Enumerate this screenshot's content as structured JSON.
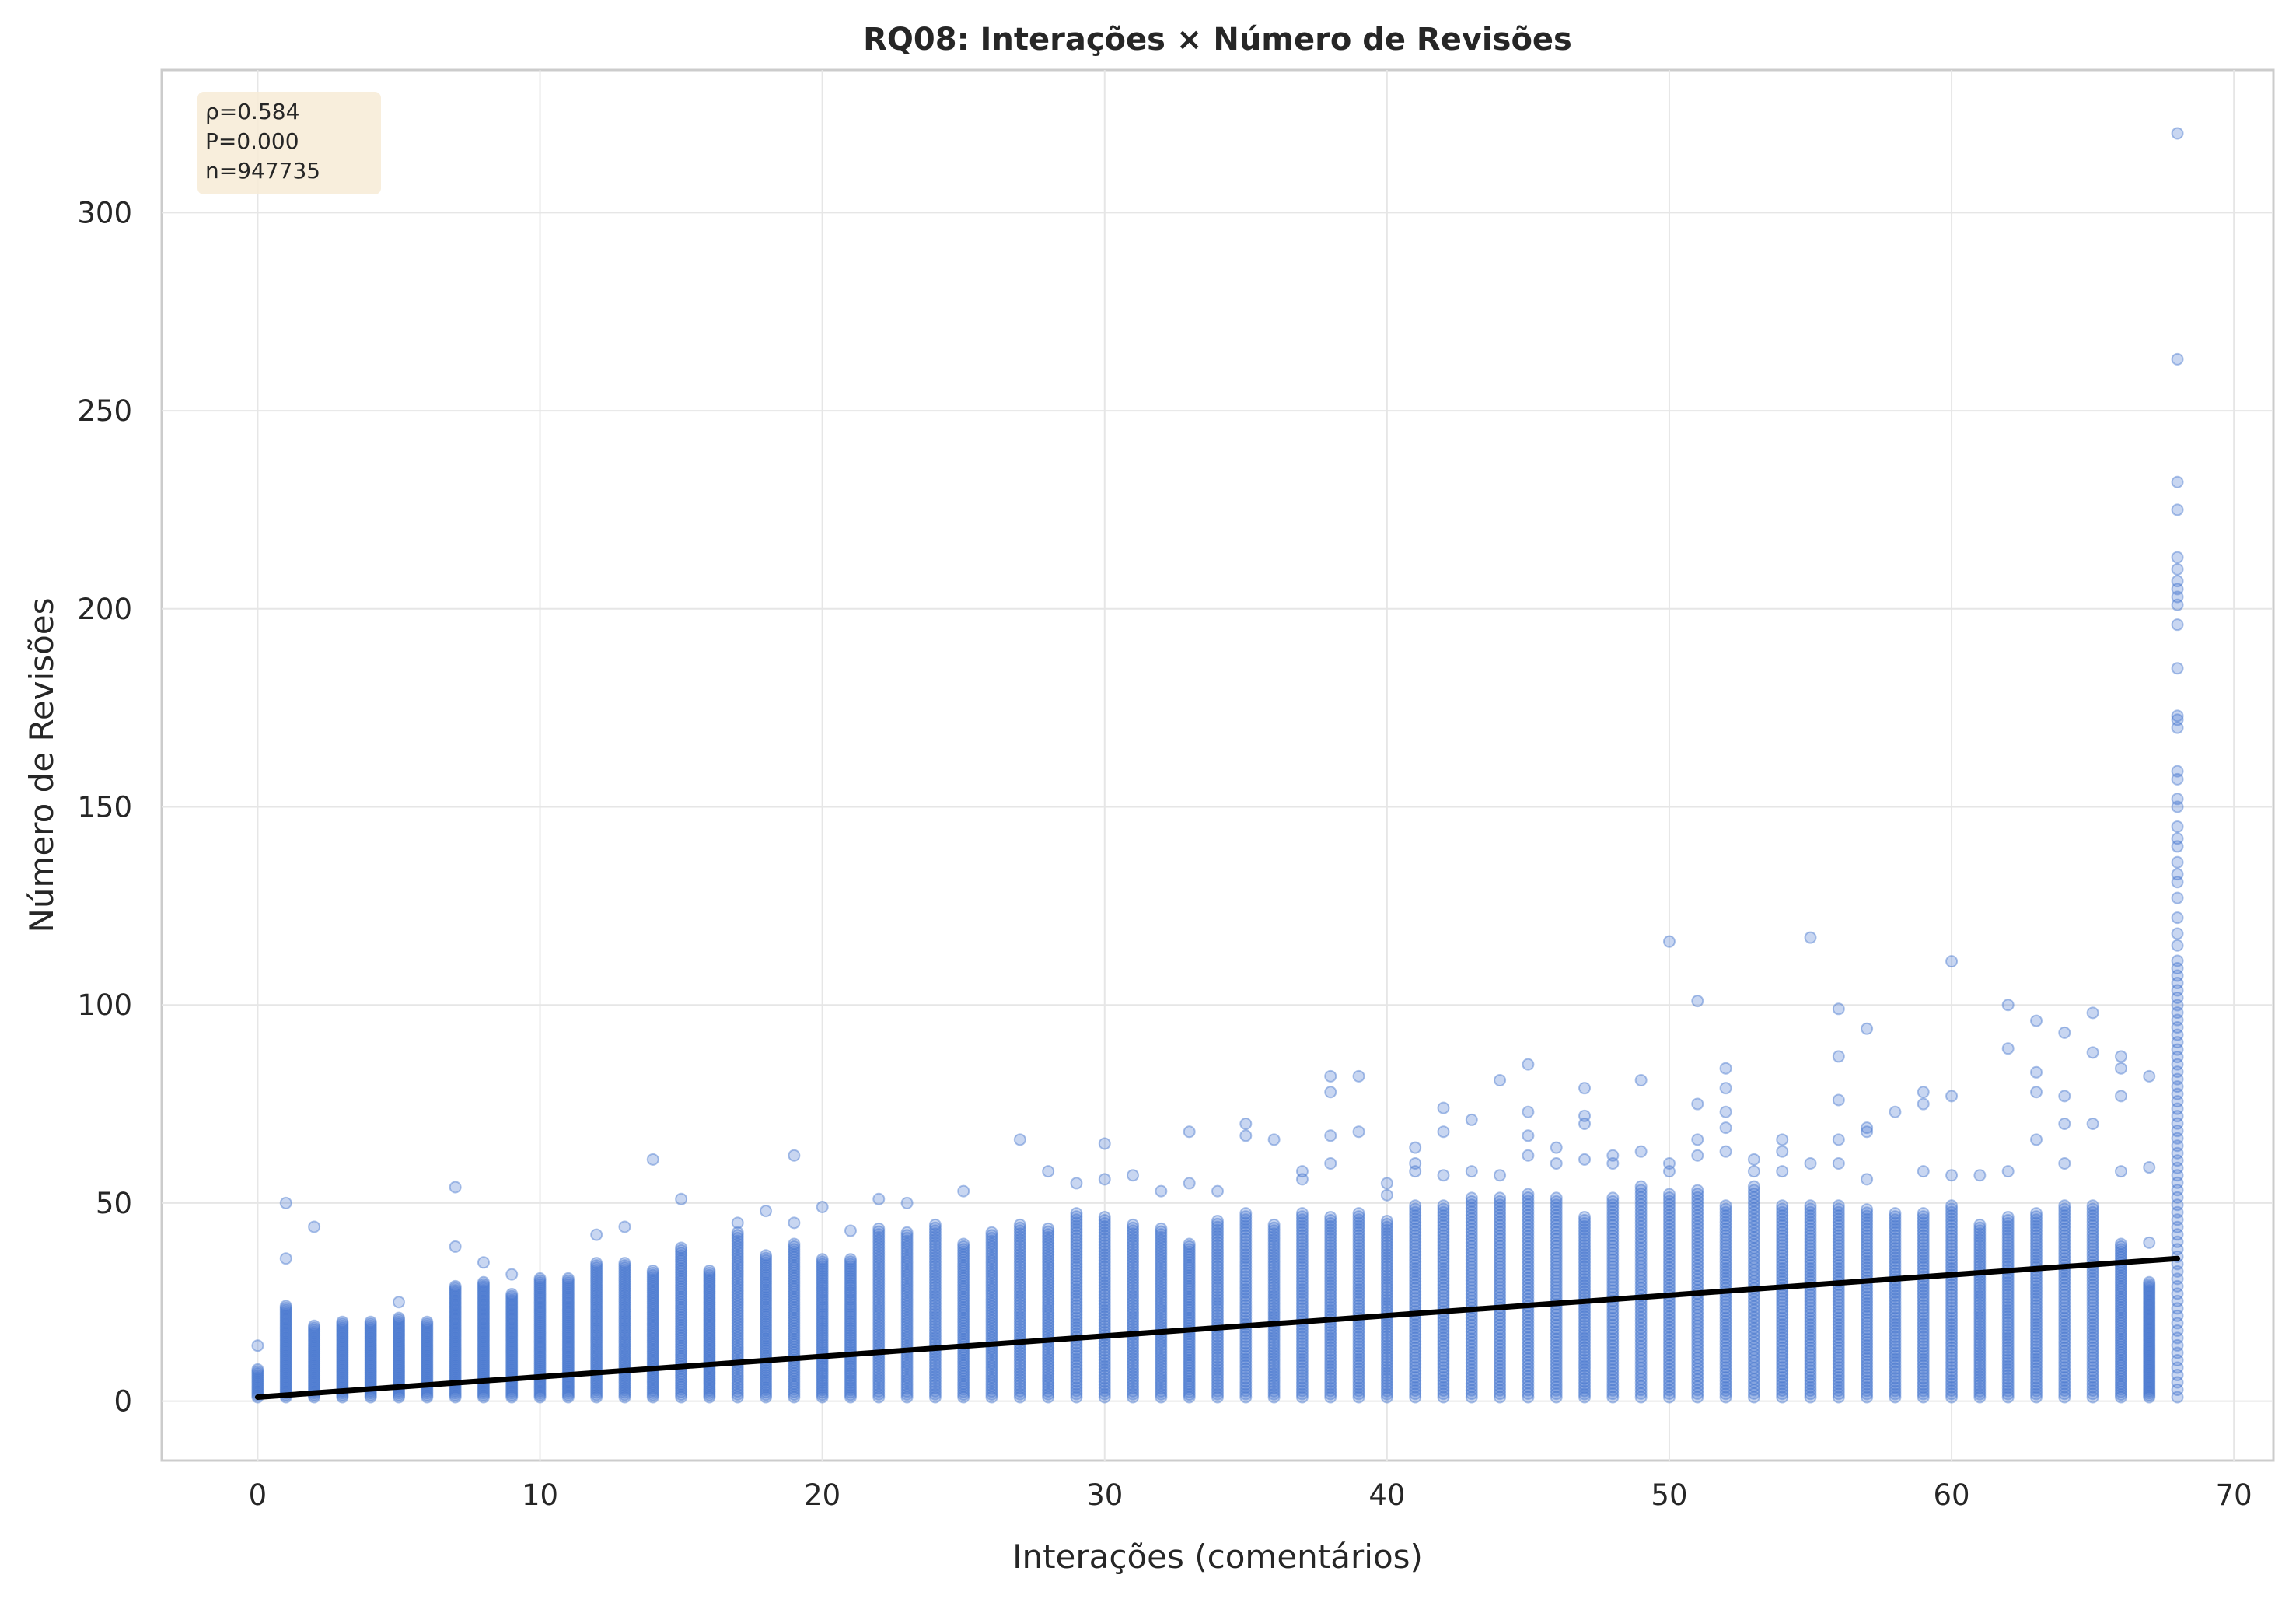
{
  "chart_data": {
    "type": "scatter",
    "title": "RQ08: Interações × Número de Revisões",
    "xlabel": "Interações (comentários)",
    "ylabel": "Número de Revisões",
    "xlim": [
      -3.4,
      71.4
    ],
    "ylim": [
      -15,
      336
    ],
    "xticks": [
      0,
      10,
      20,
      30,
      40,
      50,
      60,
      70
    ],
    "yticks": [
      0,
      50,
      100,
      150,
      200,
      250,
      300
    ],
    "grid": true,
    "point_color": "#4878cf",
    "trend_color": "#000000",
    "trend_line": {
      "x": [
        0,
        68
      ],
      "y": [
        1,
        36
      ]
    },
    "stats_box": {
      "lines": [
        "ρ=0.584",
        "P=0.000",
        "n=947735 "
      ],
      "placement": "top-left",
      "background": "#f7ebd6"
    },
    "dense_max": [
      [
        0,
        8
      ],
      [
        1,
        24
      ],
      [
        2,
        19
      ],
      [
        3,
        20
      ],
      [
        4,
        20
      ],
      [
        5,
        21
      ],
      [
        6,
        20
      ],
      [
        7,
        29
      ],
      [
        8,
        30
      ],
      [
        9,
        27
      ],
      [
        10,
        31
      ],
      [
        11,
        31
      ],
      [
        12,
        35
      ],
      [
        13,
        35
      ],
      [
        14,
        33
      ],
      [
        15,
        39
      ],
      [
        16,
        33
      ],
      [
        17,
        43
      ],
      [
        18,
        37
      ],
      [
        19,
        40
      ],
      [
        20,
        36
      ],
      [
        21,
        36
      ],
      [
        22,
        44
      ],
      [
        23,
        43
      ],
      [
        24,
        45
      ],
      [
        25,
        40
      ],
      [
        26,
        43
      ],
      [
        27,
        45
      ],
      [
        28,
        44
      ],
      [
        29,
        48
      ],
      [
        30,
        47
      ],
      [
        31,
        45
      ],
      [
        32,
        44
      ],
      [
        33,
        40
      ],
      [
        34,
        46
      ],
      [
        35,
        48
      ],
      [
        36,
        45
      ],
      [
        37,
        48
      ],
      [
        38,
        47
      ],
      [
        39,
        48
      ],
      [
        40,
        46
      ],
      [
        41,
        50
      ],
      [
        42,
        50
      ],
      [
        43,
        52
      ],
      [
        44,
        52
      ],
      [
        45,
        53
      ],
      [
        46,
        52
      ],
      [
        47,
        47
      ],
      [
        48,
        52
      ],
      [
        49,
        55
      ],
      [
        50,
        53
      ],
      [
        51,
        54
      ],
      [
        52,
        50
      ],
      [
        53,
        55
      ],
      [
        54,
        50
      ],
      [
        55,
        50
      ],
      [
        56,
        50
      ],
      [
        57,
        49
      ],
      [
        58,
        48
      ],
      [
        59,
        48
      ],
      [
        60,
        50
      ],
      [
        61,
        45
      ],
      [
        62,
        47
      ],
      [
        63,
        48
      ],
      [
        64,
        50
      ],
      [
        65,
        50
      ],
      [
        66,
        40
      ],
      [
        67,
        30
      ],
      [
        68,
        112
      ]
    ],
    "outliers": [
      [
        0,
        14
      ],
      [
        1,
        36
      ],
      [
        1,
        50
      ],
      [
        2,
        44
      ],
      [
        5,
        25
      ],
      [
        7,
        39
      ],
      [
        7,
        54
      ],
      [
        8,
        35
      ],
      [
        9,
        32
      ],
      [
        12,
        42
      ],
      [
        13,
        44
      ],
      [
        14,
        61
      ],
      [
        15,
        51
      ],
      [
        17,
        45
      ],
      [
        18,
        48
      ],
      [
        19,
        62
      ],
      [
        19,
        45
      ],
      [
        20,
        49
      ],
      [
        21,
        43
      ],
      [
        22,
        51
      ],
      [
        23,
        50
      ],
      [
        25,
        53
      ],
      [
        27,
        66
      ],
      [
        28,
        58
      ],
      [
        29,
        55
      ],
      [
        30,
        65
      ],
      [
        30,
        56
      ],
      [
        31,
        57
      ],
      [
        32,
        53
      ],
      [
        33,
        68
      ],
      [
        33,
        55
      ],
      [
        34,
        53
      ],
      [
        35,
        70
      ],
      [
        35,
        67
      ],
      [
        36,
        66
      ],
      [
        37,
        58
      ],
      [
        37,
        56
      ],
      [
        38,
        82
      ],
      [
        38,
        78
      ],
      [
        38,
        67
      ],
      [
        38,
        60
      ],
      [
        39,
        82
      ],
      [
        39,
        68
      ],
      [
        40,
        55
      ],
      [
        40,
        52
      ],
      [
        41,
        64
      ],
      [
        41,
        60
      ],
      [
        41,
        58
      ],
      [
        42,
        74
      ],
      [
        42,
        68
      ],
      [
        42,
        57
      ],
      [
        43,
        71
      ],
      [
        43,
        58
      ],
      [
        44,
        81
      ],
      [
        44,
        57
      ],
      [
        45,
        85
      ],
      [
        45,
        73
      ],
      [
        45,
        67
      ],
      [
        45,
        62
      ],
      [
        46,
        64
      ],
      [
        46,
        60
      ],
      [
        47,
        79
      ],
      [
        47,
        72
      ],
      [
        47,
        70
      ],
      [
        47,
        61
      ],
      [
        48,
        62
      ],
      [
        48,
        60
      ],
      [
        49,
        81
      ],
      [
        49,
        63
      ],
      [
        50,
        116
      ],
      [
        50,
        60
      ],
      [
        50,
        58
      ],
      [
        51,
        101
      ],
      [
        51,
        75
      ],
      [
        51,
        66
      ],
      [
        51,
        62
      ],
      [
        52,
        84
      ],
      [
        52,
        79
      ],
      [
        52,
        73
      ],
      [
        52,
        69
      ],
      [
        52,
        63
      ],
      [
        53,
        61
      ],
      [
        53,
        58
      ],
      [
        54,
        66
      ],
      [
        54,
        63
      ],
      [
        54,
        58
      ],
      [
        55,
        117
      ],
      [
        55,
        60
      ],
      [
        56,
        99
      ],
      [
        56,
        87
      ],
      [
        56,
        76
      ],
      [
        56,
        66
      ],
      [
        56,
        60
      ],
      [
        57,
        94
      ],
      [
        57,
        69
      ],
      [
        57,
        68
      ],
      [
        57,
        56
      ],
      [
        58,
        73
      ],
      [
        59,
        78
      ],
      [
        59,
        75
      ],
      [
        59,
        58
      ],
      [
        60,
        111
      ],
      [
        60,
        77
      ],
      [
        60,
        57
      ],
      [
        61,
        57
      ],
      [
        62,
        100
      ],
      [
        62,
        89
      ],
      [
        62,
        58
      ],
      [
        63,
        96
      ],
      [
        63,
        83
      ],
      [
        63,
        78
      ],
      [
        63,
        66
      ],
      [
        64,
        93
      ],
      [
        64,
        77
      ],
      [
        64,
        70
      ],
      [
        64,
        60
      ],
      [
        65,
        98
      ],
      [
        65,
        88
      ],
      [
        65,
        70
      ],
      [
        66,
        87
      ],
      [
        66,
        84
      ],
      [
        66,
        77
      ],
      [
        66,
        58
      ],
      [
        67,
        82
      ],
      [
        67,
        59
      ],
      [
        67,
        40
      ],
      [
        68,
        320
      ],
      [
        68,
        263
      ],
      [
        68,
        232
      ],
      [
        68,
        225
      ],
      [
        68,
        213
      ],
      [
        68,
        210
      ],
      [
        68,
        207
      ],
      [
        68,
        205
      ],
      [
        68,
        203
      ],
      [
        68,
        201
      ],
      [
        68,
        196
      ],
      [
        68,
        185
      ],
      [
        68,
        173
      ],
      [
        68,
        172
      ],
      [
        68,
        170
      ],
      [
        68,
        159
      ],
      [
        68,
        157
      ],
      [
        68,
        152
      ],
      [
        68,
        150
      ],
      [
        68,
        145
      ],
      [
        68,
        142
      ],
      [
        68,
        140
      ],
      [
        68,
        136
      ],
      [
        68,
        133
      ],
      [
        68,
        131
      ],
      [
        68,
        127
      ],
      [
        68,
        122
      ],
      [
        68,
        118
      ],
      [
        68,
        115
      ]
    ]
  }
}
